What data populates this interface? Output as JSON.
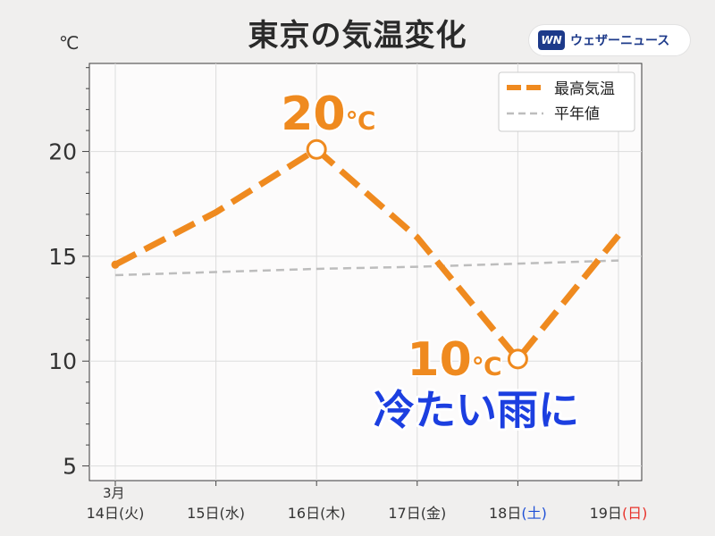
{
  "title": "東京の気温変化",
  "unit": "℃",
  "logo": {
    "mark": "WN",
    "text": "ウェザーニュース"
  },
  "colors": {
    "max_line": "#ef8a1f",
    "normal_line": "#bdbdbd",
    "saturday": "#1e4fd6",
    "sunday": "#e8322b",
    "annotation_text": "#ef8a1f",
    "callout_fill": "#1c3fe0",
    "callout_stroke": "#ffffff"
  },
  "chart_data": {
    "type": "line",
    "month_label": "3月",
    "categories": [
      {
        "day": "14日",
        "dow": "(火)",
        "dow_kind": "weekday"
      },
      {
        "day": "15日",
        "dow": "(水)",
        "dow_kind": "weekday"
      },
      {
        "day": "16日",
        "dow": "(木)",
        "dow_kind": "weekday"
      },
      {
        "day": "17日",
        "dow": "(金)",
        "dow_kind": "weekday"
      },
      {
        "day": "18日",
        "dow": "(土)",
        "dow_kind": "saturday"
      },
      {
        "day": "19日",
        "dow": "(日)",
        "dow_kind": "sunday"
      }
    ],
    "ylim": [
      4.3,
      24.2
    ],
    "yticks": [
      5,
      10,
      15,
      20
    ],
    "grid": true,
    "legend_position": "top-right",
    "series": [
      {
        "name": "最高気温",
        "values": [
          14.6,
          17.1,
          20.1,
          15.9,
          10.1,
          16.0
        ],
        "style": "thick-dashed"
      },
      {
        "name": "平年値",
        "values": [
          14.1,
          14.25,
          14.4,
          14.5,
          14.65,
          14.8
        ],
        "style": "thin-dashed"
      }
    ],
    "annotations": [
      {
        "text": "20",
        "unit": "℃",
        "index": 2,
        "series": 0
      },
      {
        "text": "10",
        "unit": "℃",
        "index": 4,
        "series": 0
      }
    ],
    "callout": "冷たい雨に"
  }
}
